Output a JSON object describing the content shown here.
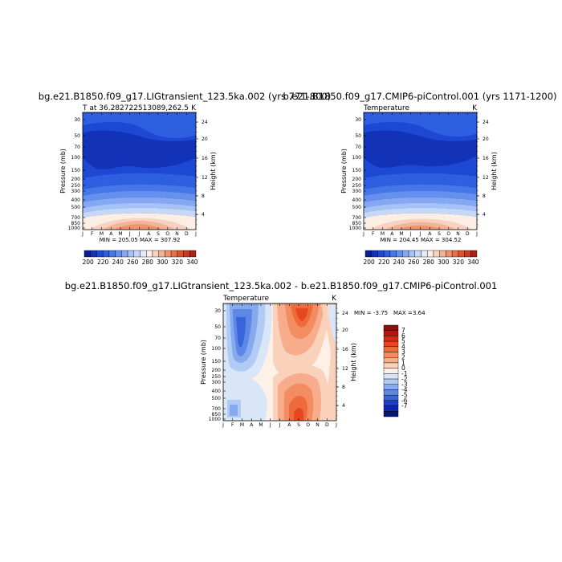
{
  "chart_data": [
    {
      "type": "contour",
      "title": "bg.e21.B1850.f09_g17.LIGtransient_123.5ka.002 (yrs 771-800)",
      "subtitle_left": "T at 36.282722513089,262.5",
      "subtitle_right": "K",
      "stats": "MIN = 205.05 MAX = 307.92",
      "ylabel": "Pressure (mb)",
      "ylabel_right": "Height (km)",
      "months": [
        "J",
        "F",
        "M",
        "A",
        "M",
        "J",
        "J",
        "A",
        "S",
        "O",
        "N",
        "D",
        "J"
      ],
      "pressure_ticks": [
        "30",
        "50",
        "70",
        "100",
        "150",
        "200",
        "250",
        "300",
        "400",
        "500",
        "700",
        "850",
        "1000"
      ],
      "height_ticks": [
        "24",
        "20",
        "16",
        "12",
        "8",
        "4"
      ],
      "colorbar_labels": [
        "200",
        "220",
        "240",
        "260",
        "280",
        "300",
        "320",
        "340"
      ],
      "colorbar_colors": [
        "#0a1f8f",
        "#1232b8",
        "#1d48d4",
        "#2d5fe0",
        "#4776e8",
        "#6590ee",
        "#84a8f2",
        "#a6c2f6",
        "#c6d8f8",
        "#e2ecfb",
        "#fdeee4",
        "#f8d2c0",
        "#f3b397",
        "#ee9270",
        "#e8714c",
        "#dc522f",
        "#c93a1f",
        "#a82416"
      ],
      "colorbar_min": 195,
      "colorbar_max": 345
    },
    {
      "type": "contour",
      "title": "b.e21.B1850.f09_g17.CMIP6-piControl.001 (yrs 1171-1200)",
      "subtitle_left": "Temperature",
      "subtitle_right": "K",
      "stats": "MIN = 204.45 MAX = 304.52",
      "ylabel": "Pressure (mb)",
      "ylabel_right": "Height (km)",
      "months": [
        "J",
        "F",
        "M",
        "A",
        "M",
        "J",
        "J",
        "A",
        "S",
        "O",
        "N",
        "D",
        "J"
      ],
      "pressure_ticks": [
        "30",
        "50",
        "70",
        "100",
        "150",
        "200",
        "250",
        "300",
        "400",
        "500",
        "700",
        "850",
        "1000"
      ],
      "height_ticks": [
        "24",
        "20",
        "16",
        "12",
        "8",
        "4"
      ],
      "colorbar_labels": [
        "200",
        "220",
        "240",
        "260",
        "280",
        "300",
        "320",
        "340"
      ],
      "colorbar_colors": [
        "#0a1f8f",
        "#1232b8",
        "#1d48d4",
        "#2d5fe0",
        "#4776e8",
        "#6590ee",
        "#84a8f2",
        "#a6c2f6",
        "#c6d8f8",
        "#e2ecfb",
        "#fdeee4",
        "#f8d2c0",
        "#f3b397",
        "#ee9270",
        "#e8714c",
        "#dc522f",
        "#c93a1f",
        "#a82416"
      ],
      "colorbar_min": 195,
      "colorbar_max": 345
    },
    {
      "type": "contour",
      "title": "bg.e21.B1850.f09_g17.LIGtransient_123.5ka.002 - b.e21.B1850.f09_g17.CMIP6-piControl.001",
      "subtitle_left": "Temperature",
      "subtitle_right": "K",
      "stats_min_label": "MIN =",
      "stats_min": "-3.75",
      "stats_max_label": "MAX =",
      "stats_max": "3.64",
      "ylabel": "Pressure (mb)",
      "ylabel_right": "Height (km)",
      "months": [
        "J",
        "F",
        "M",
        "A",
        "M",
        "J",
        "J",
        "A",
        "S",
        "O",
        "N",
        "D",
        "J"
      ],
      "pressure_ticks": [
        "30",
        "50",
        "70",
        "100",
        "150",
        "200",
        "250",
        "300",
        "400",
        "500",
        "700",
        "850",
        "1000"
      ],
      "height_ticks": [
        "24",
        "20",
        "16",
        "12",
        "8",
        "4"
      ],
      "colorbar_labels": [
        "7",
        "6",
        "5",
        "4",
        "3",
        "2",
        "1",
        "0",
        "-1",
        "-2",
        "-3",
        "-4",
        "-5",
        "-6",
        "-7"
      ],
      "colorbar_colors": [
        "#8c1010",
        "#b2180f",
        "#d22c12",
        "#e5481e",
        "#ef6a3c",
        "#f48c61",
        "#f7ad8c",
        "#fad1bb",
        "#fdf0e6",
        "#d8e6f8",
        "#b1ccf4",
        "#86aaee",
        "#5d88e6",
        "#3a64da",
        "#1c3fc6",
        "#0f28a6",
        "#061672"
      ],
      "colorbar_min": -7,
      "colorbar_max": 7
    }
  ]
}
